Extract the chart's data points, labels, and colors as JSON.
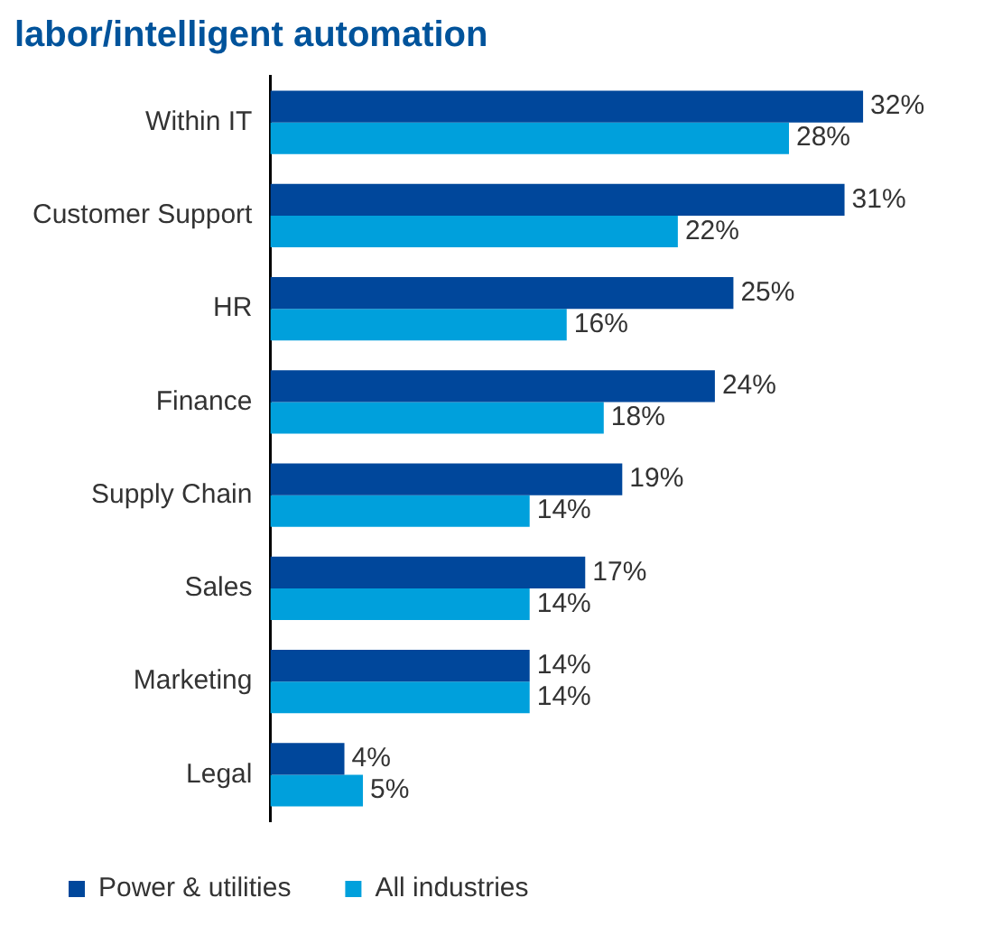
{
  "chart_data": {
    "type": "bar",
    "orientation": "horizontal",
    "title": "labor/intelligent automation",
    "categories": [
      "Within IT",
      "Customer Support",
      "HR",
      "Finance",
      "Supply Chain",
      "Sales",
      "Marketing",
      "Legal"
    ],
    "series": [
      {
        "name": "Power & utilities",
        "color": "#00479b",
        "values": [
          32,
          31,
          25,
          24,
          19,
          17,
          14,
          4
        ],
        "value_labels": [
          "32%",
          "31%",
          "25%",
          "24%",
          "19%",
          "17%",
          "14%",
          "4%"
        ]
      },
      {
        "name": "All industries",
        "color": "#00a0dc",
        "values": [
          28,
          22,
          16,
          18,
          14,
          14,
          14,
          5
        ],
        "value_labels": [
          "28%",
          "22%",
          "16%",
          "18%",
          "14%",
          "14%",
          "14%",
          "5%"
        ]
      }
    ],
    "legend": "bottom",
    "tick_labels": "y"
  }
}
